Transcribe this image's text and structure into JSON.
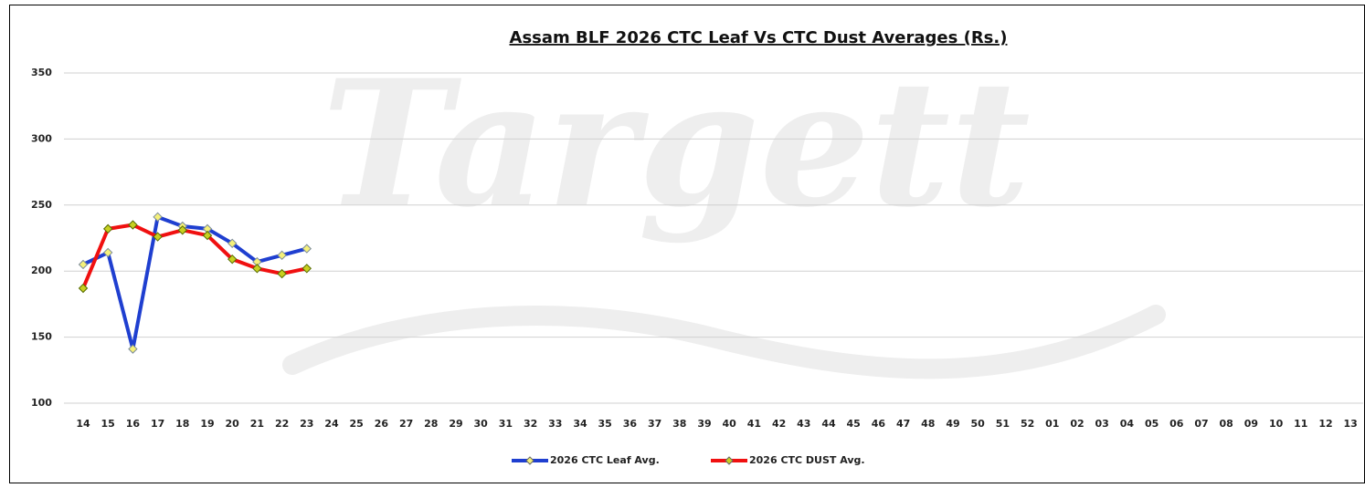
{
  "chart_data": {
    "type": "line",
    "title": "Assam BLF 2026  CTC Leaf Vs CTC Dust Averages (Rs.)",
    "watermark": "Targett",
    "categories": [
      "14",
      "15",
      "16",
      "17",
      "18",
      "19",
      "20",
      "21",
      "22",
      "23",
      "24",
      "25",
      "26",
      "27",
      "28",
      "29",
      "30",
      "31",
      "32",
      "33",
      "34",
      "35",
      "36",
      "37",
      "38",
      "39",
      "40",
      "41",
      "42",
      "43",
      "44",
      "45",
      "46",
      "47",
      "48",
      "49",
      "50",
      "51",
      "52",
      "01",
      "02",
      "03",
      "04",
      "05",
      "06",
      "07",
      "08",
      "09",
      "10",
      "11",
      "12",
      "13"
    ],
    "series": [
      {
        "name": "2026 CTC Leaf Avg.",
        "color": "#1f3fd0",
        "marker_color": "#f5f07a",
        "values": [
          205,
          214,
          141,
          241,
          234,
          232,
          221,
          207,
          212,
          217,
          null,
          null,
          null,
          null,
          null,
          null,
          null,
          null,
          null,
          null,
          null,
          null,
          null,
          null,
          null,
          null,
          null,
          null,
          null,
          null,
          null,
          null,
          null,
          null,
          null,
          null,
          null,
          null,
          null,
          null,
          null,
          null,
          null,
          null,
          null,
          null,
          null,
          null,
          null,
          null,
          null,
          null
        ]
      },
      {
        "name": "2026 CTC DUST Avg.",
        "color": "#f01010",
        "marker_color": "#c8d020",
        "values": [
          187,
          232,
          235,
          226,
          231,
          227,
          209,
          202,
          198,
          202,
          null,
          null,
          null,
          null,
          null,
          null,
          null,
          null,
          null,
          null,
          null,
          null,
          null,
          null,
          null,
          null,
          null,
          null,
          null,
          null,
          null,
          null,
          null,
          null,
          null,
          null,
          null,
          null,
          null,
          null,
          null,
          null,
          null,
          null,
          null,
          null,
          null,
          null,
          null,
          null,
          null,
          null
        ]
      }
    ],
    "ylim": [
      100,
      350
    ],
    "yticks": [
      100,
      150,
      200,
      250,
      300,
      350
    ],
    "grid": true,
    "legend": "bottom"
  }
}
